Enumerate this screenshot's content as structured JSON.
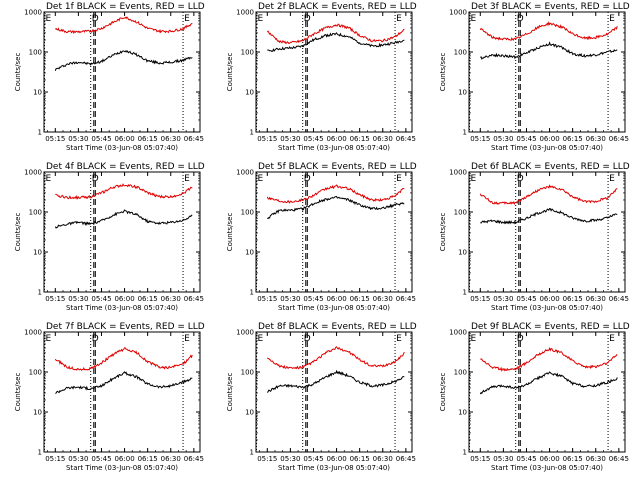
{
  "chart_data": [
    {
      "type": "line",
      "title": "Det 1f BLACK = Events, RED = LLD",
      "xlabel": "Start Time (03-Jun-08 05:07:40)",
      "ylabel": "Counts/sec",
      "ylim": [
        1,
        1000
      ],
      "y_scale": "log",
      "x_ticks": [
        "05:15",
        "05:30",
        "05:45",
        "06:00",
        "06:15",
        "06:30",
        "06:45"
      ],
      "y_ticks": [
        "1",
        "10",
        "100",
        "1000"
      ],
      "marker_labels": [
        "E",
        "D",
        "E"
      ],
      "series": [
        {
          "name": "Events",
          "color": "#000000",
          "x": [
            "05:15",
            "05:23",
            "05:30",
            "05:38",
            "05:45",
            "05:53",
            "06:00",
            "06:08",
            "06:15",
            "06:23",
            "06:30",
            "06:38",
            "06:44"
          ],
          "values": [
            36,
            50,
            56,
            50,
            58,
            85,
            110,
            85,
            60,
            53,
            55,
            62,
            75
          ]
        },
        {
          "name": "LLD",
          "color": "#e00000",
          "x": [
            "05:15",
            "05:23",
            "05:30",
            "05:38",
            "05:45",
            "05:53",
            "06:00",
            "06:08",
            "06:15",
            "06:23",
            "06:30",
            "06:38",
            "06:44"
          ],
          "values": [
            380,
            320,
            320,
            330,
            390,
            560,
            750,
            560,
            390,
            330,
            330,
            380,
            520
          ]
        }
      ]
    },
    {
      "type": "line",
      "title": "Det 2f BLACK = Events, RED = LLD",
      "xlabel": "Start Time (03-Jun-08 05:07:40)",
      "ylabel": "Counts/sec",
      "ylim": [
        1,
        1000
      ],
      "y_scale": "log",
      "x_ticks": [
        "05:15",
        "05:30",
        "05:45",
        "06:00",
        "06:15",
        "06:30",
        "06:45"
      ],
      "y_ticks": [
        "1",
        "10",
        "100",
        "1000"
      ],
      "marker_labels": [
        "E",
        "D",
        "E"
      ],
      "series": [
        {
          "name": "Events",
          "color": "#000000",
          "x": [
            "05:15",
            "05:23",
            "05:30",
            "05:38",
            "05:45",
            "05:53",
            "06:00",
            "06:08",
            "06:15",
            "06:23",
            "06:30",
            "06:38",
            "06:44"
          ],
          "values": [
            105,
            120,
            125,
            140,
            200,
            260,
            280,
            240,
            170,
            140,
            150,
            170,
            200
          ]
        },
        {
          "name": "LLD",
          "color": "#e00000",
          "x": [
            "05:15",
            "05:23",
            "05:30",
            "05:38",
            "05:45",
            "05:53",
            "06:00",
            "06:08",
            "06:15",
            "06:23",
            "06:30",
            "06:38",
            "06:44"
          ],
          "values": [
            330,
            180,
            170,
            190,
            280,
            400,
            480,
            400,
            260,
            190,
            190,
            240,
            360
          ]
        }
      ]
    },
    {
      "type": "line",
      "title": "Det 3f BLACK = Events, RED = LLD",
      "xlabel": "Start Time (03-Jun-08 05:07:40)",
      "ylabel": "Counts/sec",
      "ylim": [
        1,
        1000
      ],
      "y_scale": "log",
      "x_ticks": [
        "05:15",
        "05:30",
        "05:45",
        "06:00",
        "06:15",
        "06:30",
        "06:45"
      ],
      "y_ticks": [
        "1",
        "10",
        "100",
        "1000"
      ],
      "marker_labels": [
        "E",
        "D",
        "E"
      ],
      "series": [
        {
          "name": "Events",
          "color": "#000000",
          "x": [
            "05:15",
            "05:23",
            "05:30",
            "05:38",
            "05:45",
            "05:53",
            "06:00",
            "06:08",
            "06:15",
            "06:23",
            "06:30",
            "06:38",
            "06:44"
          ],
          "values": [
            70,
            85,
            80,
            75,
            95,
            130,
            160,
            130,
            90,
            80,
            85,
            100,
            110
          ]
        },
        {
          "name": "LLD",
          "color": "#e00000",
          "x": [
            "05:15",
            "05:23",
            "05:30",
            "05:38",
            "05:45",
            "05:53",
            "06:00",
            "06:08",
            "06:15",
            "06:23",
            "06:30",
            "06:38",
            "06:44"
          ],
          "values": [
            380,
            230,
            210,
            210,
            280,
            420,
            520,
            420,
            280,
            220,
            230,
            280,
            420
          ]
        }
      ]
    },
    {
      "type": "line",
      "title": "Det 4f BLACK = Events, RED = LLD",
      "xlabel": "Start Time (03-Jun-08 05:07:40)",
      "ylabel": "Counts/sec",
      "ylim": [
        1,
        1000
      ],
      "y_scale": "log",
      "x_ticks": [
        "05:15",
        "05:30",
        "05:45",
        "06:00",
        "06:15",
        "06:30",
        "06:45"
      ],
      "y_ticks": [
        "1",
        "10",
        "100",
        "1000"
      ],
      "marker_labels": [
        "E",
        "D",
        "E"
      ],
      "series": [
        {
          "name": "Events",
          "color": "#000000",
          "x": [
            "05:15",
            "05:23",
            "05:30",
            "05:38",
            "05:45",
            "05:53",
            "06:00",
            "06:08",
            "06:15",
            "06:23",
            "06:30",
            "06:38",
            "06:44"
          ],
          "values": [
            42,
            50,
            55,
            50,
            60,
            85,
            105,
            85,
            58,
            52,
            55,
            62,
            80
          ]
        },
        {
          "name": "LLD",
          "color": "#e00000",
          "x": [
            "05:15",
            "05:23",
            "05:30",
            "05:38",
            "05:45",
            "05:53",
            "06:00",
            "06:08",
            "06:15",
            "06:23",
            "06:30",
            "06:38",
            "06:44"
          ],
          "values": [
            260,
            230,
            230,
            240,
            300,
            420,
            480,
            420,
            300,
            240,
            240,
            290,
            430
          ]
        }
      ]
    },
    {
      "type": "line",
      "title": "Det 5f BLACK = Events, RED = LLD",
      "xlabel": "Start Time (03-Jun-08 05:07:40)",
      "ylabel": "Counts/sec",
      "ylim": [
        1,
        1000
      ],
      "y_scale": "log",
      "x_ticks": [
        "05:15",
        "05:30",
        "05:45",
        "06:00",
        "06:15",
        "06:30",
        "06:45"
      ],
      "y_ticks": [
        "1",
        "10",
        "100",
        "1000"
      ],
      "marker_labels": [
        "E",
        "D",
        "E"
      ],
      "series": [
        {
          "name": "Events",
          "color": "#000000",
          "x": [
            "05:15",
            "05:23",
            "05:30",
            "05:38",
            "05:45",
            "05:53",
            "06:00",
            "06:08",
            "06:15",
            "06:23",
            "06:30",
            "06:38",
            "06:44"
          ],
          "values": [
            70,
            110,
            110,
            120,
            160,
            210,
            230,
            200,
            150,
            120,
            125,
            150,
            170
          ]
        },
        {
          "name": "LLD",
          "color": "#e00000",
          "x": [
            "05:15",
            "05:23",
            "05:30",
            "05:38",
            "05:45",
            "05:53",
            "06:00",
            "06:08",
            "06:15",
            "06:23",
            "06:30",
            "06:38",
            "06:44"
          ],
          "values": [
            230,
            190,
            180,
            200,
            260,
            380,
            440,
            380,
            270,
            200,
            200,
            250,
            400
          ]
        }
      ]
    },
    {
      "type": "line",
      "title": "Det 6f BLACK = Events, RED = LLD",
      "xlabel": "Start Time (03-Jun-08 05:07:40)",
      "ylabel": "Counts/sec",
      "ylim": [
        1,
        1000
      ],
      "y_scale": "log",
      "x_ticks": [
        "05:15",
        "05:30",
        "05:45",
        "06:00",
        "06:15",
        "06:30",
        "06:45"
      ],
      "y_ticks": [
        "1",
        "10",
        "100",
        "1000"
      ],
      "marker_labels": [
        "E",
        "D",
        "E"
      ],
      "series": [
        {
          "name": "Events",
          "color": "#000000",
          "x": [
            "05:15",
            "05:23",
            "05:30",
            "05:38",
            "05:45",
            "05:53",
            "06:00",
            "06:08",
            "06:15",
            "06:23",
            "06:30",
            "06:38",
            "06:44"
          ],
          "values": [
            55,
            60,
            55,
            55,
            70,
            95,
            115,
            95,
            70,
            60,
            62,
            72,
            90
          ]
        },
        {
          "name": "LLD",
          "color": "#e00000",
          "x": [
            "05:15",
            "05:23",
            "05:30",
            "05:38",
            "05:45",
            "05:53",
            "06:00",
            "06:08",
            "06:15",
            "06:23",
            "06:30",
            "06:38",
            "06:44"
          ],
          "values": [
            280,
            170,
            165,
            170,
            240,
            360,
            430,
            360,
            240,
            180,
            185,
            230,
            380
          ]
        }
      ]
    },
    {
      "type": "line",
      "title": "Det 7f BLACK = Events, RED = LLD",
      "xlabel": "Start Time (03-Jun-08 05:07:40)",
      "ylabel": "Counts/sec",
      "ylim": [
        1,
        1000
      ],
      "y_scale": "log",
      "x_ticks": [
        "05:15",
        "05:30",
        "05:45",
        "06:00",
        "06:15",
        "06:30",
        "06:45"
      ],
      "y_ticks": [
        "1",
        "10",
        "100",
        "1000"
      ],
      "marker_labels": [
        "E",
        "D",
        "E"
      ],
      "series": [
        {
          "name": "Events",
          "color": "#000000",
          "x": [
            "05:15",
            "05:23",
            "05:30",
            "05:38",
            "05:45",
            "05:53",
            "06:00",
            "06:08",
            "06:15",
            "06:23",
            "06:30",
            "06:38",
            "06:44"
          ],
          "values": [
            30,
            40,
            42,
            38,
            45,
            70,
            95,
            75,
            50,
            42,
            45,
            55,
            70
          ]
        },
        {
          "name": "LLD",
          "color": "#e00000",
          "x": [
            "05:15",
            "05:23",
            "05:30",
            "05:38",
            "05:45",
            "05:53",
            "06:00",
            "06:08",
            "06:15",
            "06:23",
            "06:30",
            "06:38",
            "06:44"
          ],
          "values": [
            210,
            130,
            115,
            120,
            170,
            280,
            380,
            300,
            180,
            130,
            130,
            160,
            260
          ]
        }
      ]
    },
    {
      "type": "line",
      "title": "Det 8f BLACK = Events, RED = LLD",
      "xlabel": "Start Time (03-Jun-08 05:07:40)",
      "ylabel": "Counts/sec",
      "ylim": [
        1,
        1000
      ],
      "y_scale": "log",
      "x_ticks": [
        "05:15",
        "05:30",
        "05:45",
        "06:00",
        "06:15",
        "06:30",
        "06:45"
      ],
      "y_ticks": [
        "1",
        "10",
        "100",
        "1000"
      ],
      "marker_labels": [
        "E",
        "D",
        "E"
      ],
      "series": [
        {
          "name": "Events",
          "color": "#000000",
          "x": [
            "05:15",
            "05:23",
            "05:30",
            "05:38",
            "05:45",
            "05:53",
            "06:00",
            "06:08",
            "06:15",
            "06:23",
            "06:30",
            "06:38",
            "06:44"
          ],
          "values": [
            32,
            45,
            45,
            42,
            50,
            75,
            100,
            80,
            55,
            45,
            47,
            58,
            75
          ]
        },
        {
          "name": "LLD",
          "color": "#e00000",
          "x": [
            "05:15",
            "05:23",
            "05:30",
            "05:38",
            "05:45",
            "05:53",
            "06:00",
            "06:08",
            "06:15",
            "06:23",
            "06:30",
            "06:38",
            "06:44"
          ],
          "values": [
            230,
            140,
            125,
            130,
            180,
            300,
            400,
            320,
            200,
            140,
            140,
            180,
            300
          ]
        }
      ]
    },
    {
      "type": "line",
      "title": "Det 9f BLACK = Events, RED = LLD",
      "xlabel": "Start Time (03-Jun-08 05:07:40)",
      "ylabel": "Counts/sec",
      "ylim": [
        1,
        1000
      ],
      "y_scale": "log",
      "x_ticks": [
        "05:15",
        "05:30",
        "05:45",
        "06:00",
        "06:15",
        "06:30",
        "06:45"
      ],
      "y_ticks": [
        "1",
        "10",
        "100",
        "1000"
      ],
      "marker_labels": [
        "E",
        "D",
        "E"
      ],
      "series": [
        {
          "name": "Events",
          "color": "#000000",
          "x": [
            "05:15",
            "05:23",
            "05:30",
            "05:38",
            "05:45",
            "05:53",
            "06:00",
            "06:08",
            "06:15",
            "06:23",
            "06:30",
            "06:38",
            "06:44"
          ],
          "values": [
            30,
            42,
            45,
            40,
            48,
            72,
            95,
            78,
            52,
            44,
            46,
            56,
            70
          ]
        },
        {
          "name": "LLD",
          "color": "#e00000",
          "x": [
            "05:15",
            "05:23",
            "05:30",
            "05:38",
            "05:45",
            "05:53",
            "06:00",
            "06:08",
            "06:15",
            "06:23",
            "06:30",
            "06:38",
            "06:44"
          ],
          "values": [
            220,
            130,
            115,
            120,
            170,
            280,
            370,
            300,
            190,
            135,
            135,
            170,
            280
          ]
        }
      ]
    }
  ]
}
